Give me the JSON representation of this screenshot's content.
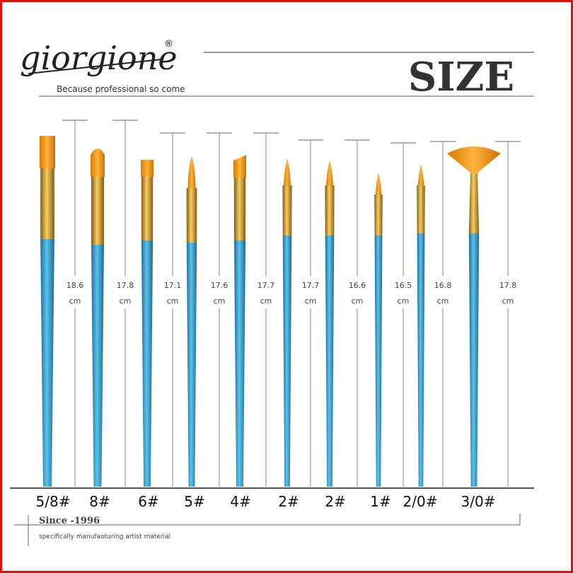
{
  "header": {
    "brand": "giorgione",
    "trademark": "®",
    "tagline": "Because professional so come",
    "title": "SIZE"
  },
  "brushes": [
    {
      "label": "5/8#",
      "length": "18.6",
      "unit": "cm"
    },
    {
      "label": "8#",
      "length": "17.8",
      "unit": "cm"
    },
    {
      "label": "6#",
      "length": "17.1",
      "unit": "cm"
    },
    {
      "label": "5#",
      "length": "17.6",
      "unit": "cm"
    },
    {
      "label": "4#",
      "length": "17.7",
      "unit": "cm"
    },
    {
      "label": "2#",
      "length": "17.7",
      "unit": "cm"
    },
    {
      "label": "2#",
      "length": "16.6",
      "unit": "cm"
    },
    {
      "label": "1#",
      "length": "16.5",
      "unit": "cm"
    },
    {
      "label": "2/0#",
      "length": "16.8",
      "unit": "cm"
    },
    {
      "label": "3/0#",
      "length": "17.8",
      "unit": "cm"
    }
  ],
  "footer": {
    "since": "Since -1996",
    "note": "specifically manufaoturing artist material"
  }
}
